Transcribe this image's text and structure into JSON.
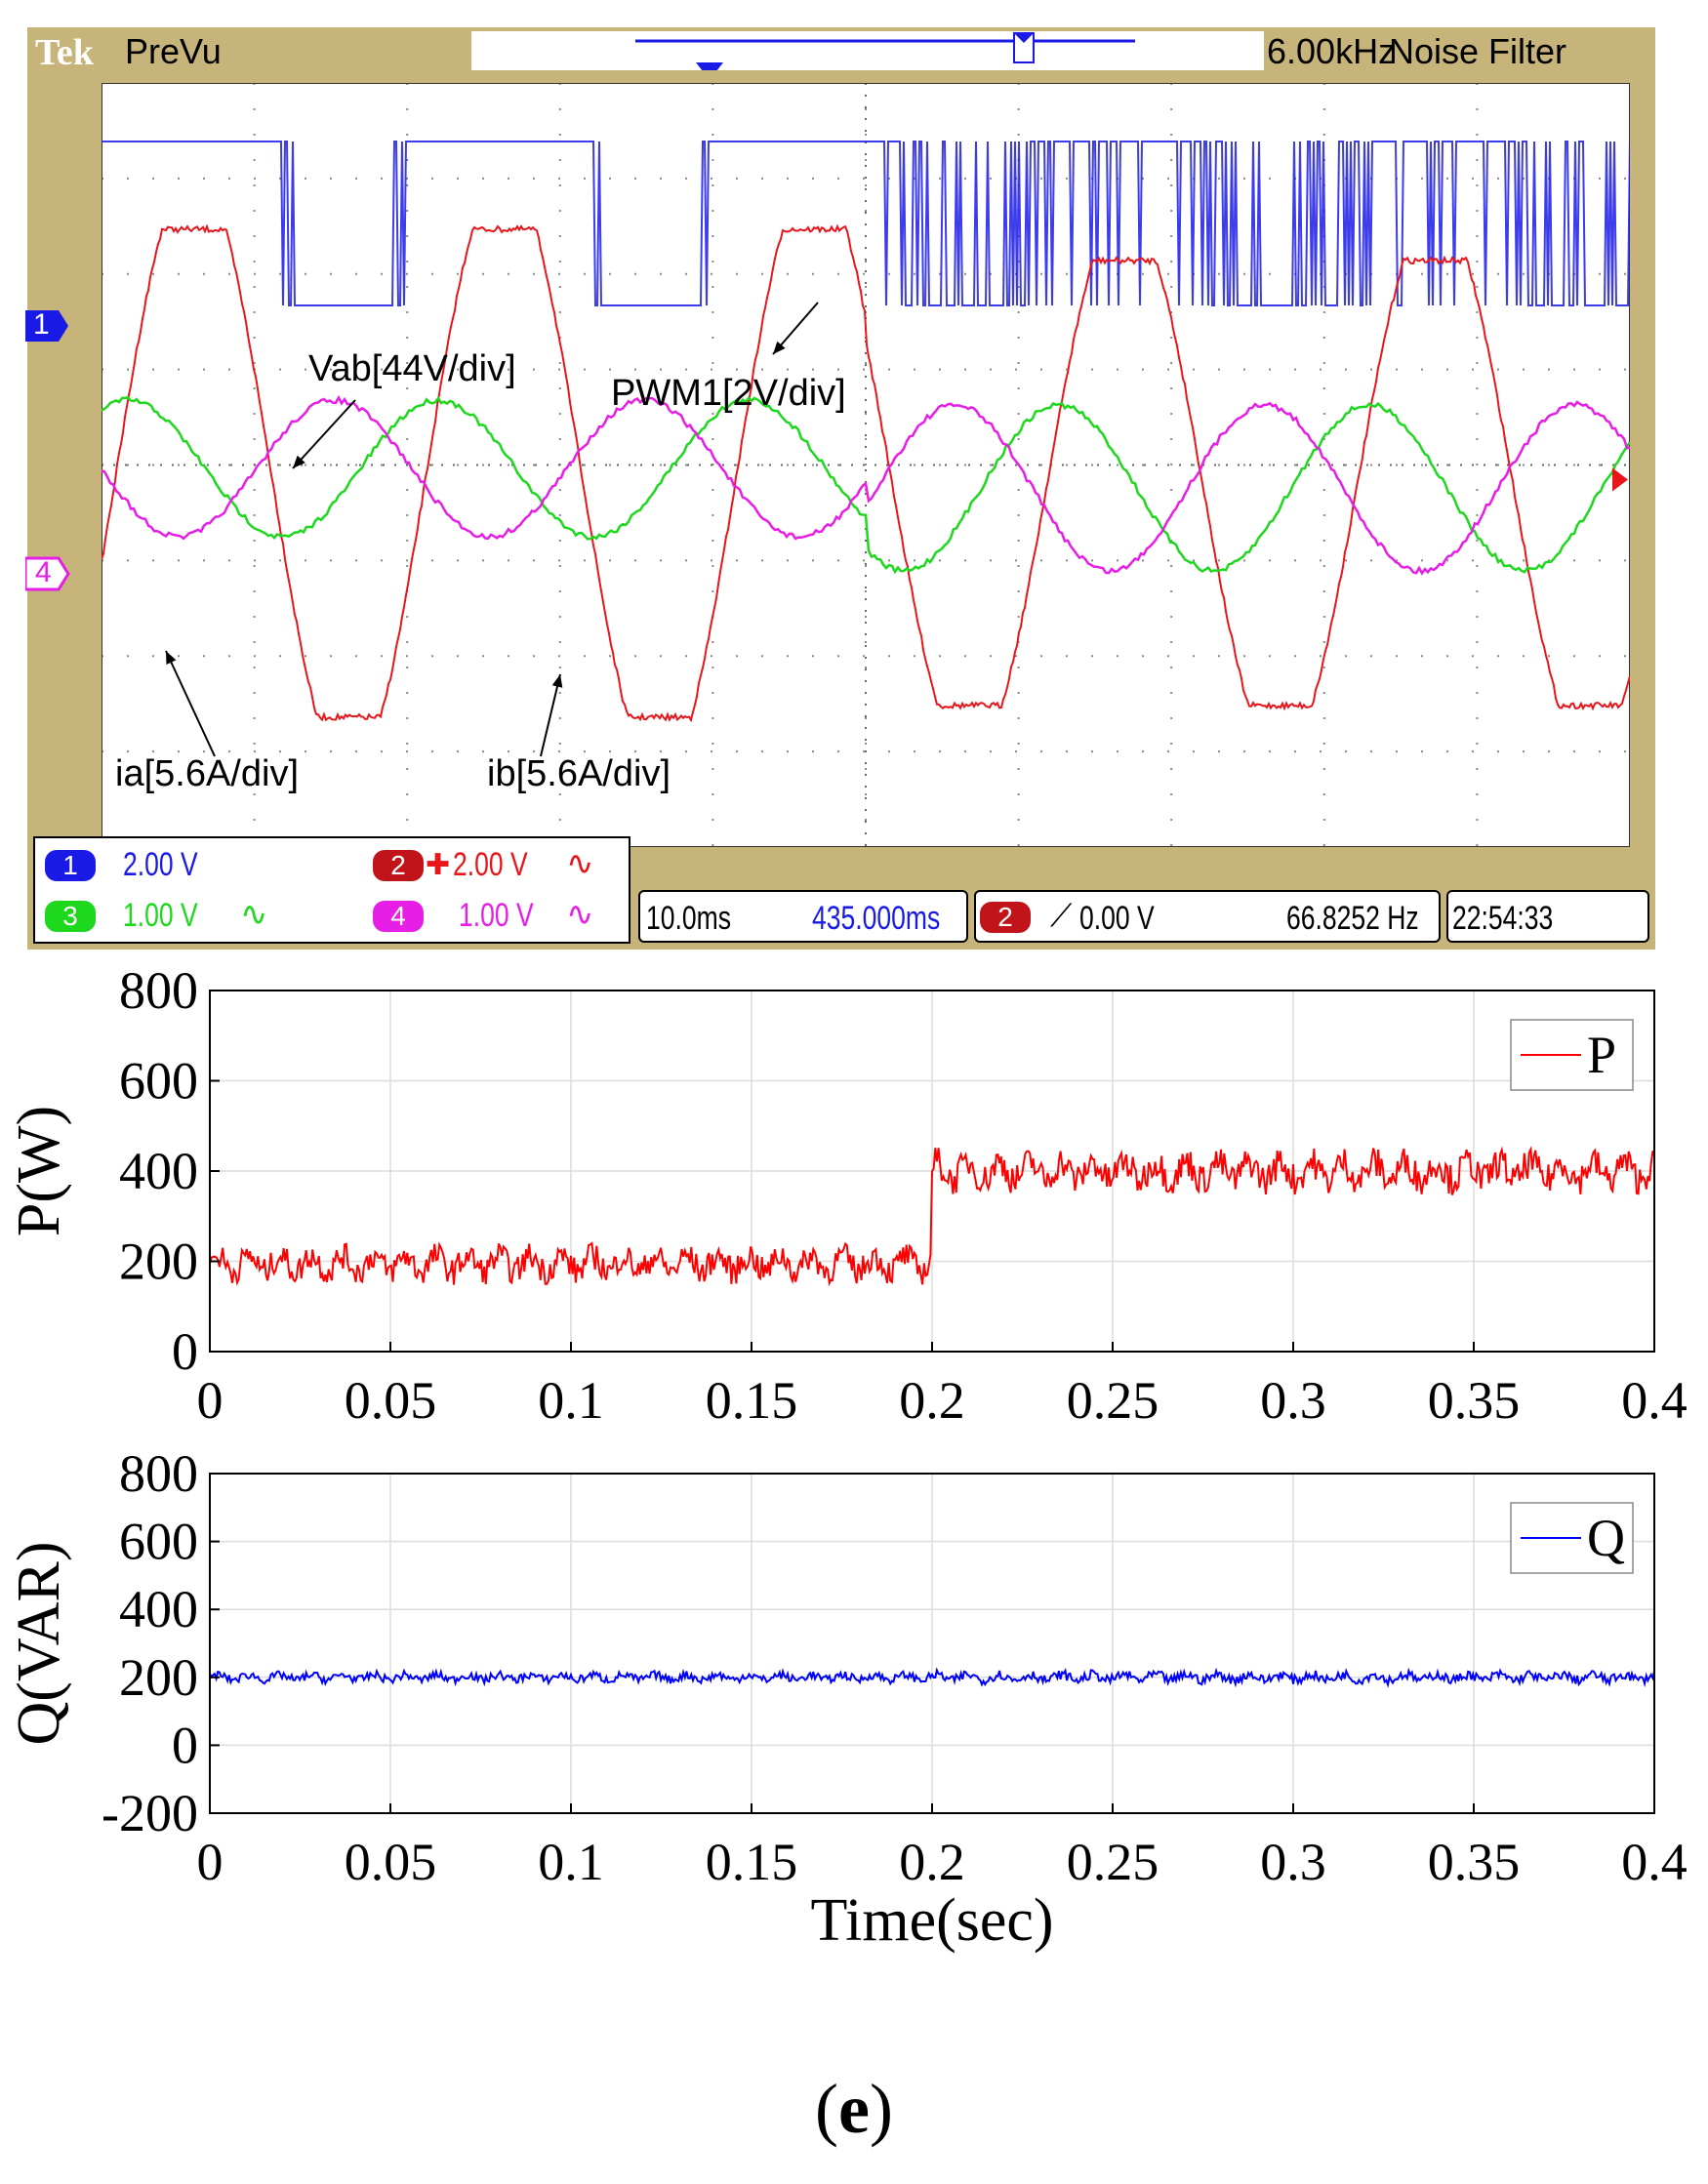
{
  "scope": {
    "logo": "Tek",
    "mode": "PreVu",
    "filter_freq": "6.00kHz",
    "filter_label": "Noise Filter",
    "channel_markers": [
      "1",
      "4"
    ],
    "annotations": {
      "vab": "Vab[44V/div]",
      "pwm1": "PWM1[2V/div]",
      "ia": "ia[5.6A/div]",
      "ib": "ib[5.6A/div]"
    },
    "readouts": {
      "ch1_num": "1",
      "ch1": "2.00 V",
      "ch2_num": "2",
      "ch2": "2.00 V",
      "ch3_num": "3",
      "ch3": "1.00 V",
      "ch4_num": "4",
      "ch4": "1.00 V",
      "timebase": "10.0ms",
      "position": "435.000ms",
      "trig_num": "2",
      "trig_level": "0.00 V",
      "frequency": "66.8252 Hz",
      "clock": "22:54:33"
    },
    "colors": {
      "ch1": "#1a1ae6",
      "ch2": "#e8161b",
      "ch3": "#1ed81e",
      "ch4": "#e61ee6"
    }
  },
  "chart_data": [
    {
      "type": "line",
      "ylabel": "P(W)",
      "xlabel": "",
      "xlim": [
        0,
        0.4
      ],
      "ylim": [
        0,
        800
      ],
      "x_ticks": [
        "0",
        "0.05",
        "0.1",
        "0.15",
        "0.2",
        "0.25",
        "0.3",
        "0.35",
        "0.4"
      ],
      "y_ticks": [
        "0",
        "200",
        "400",
        "600",
        "800"
      ],
      "grid": true,
      "legend": "top-right",
      "series": [
        {
          "name": "P",
          "color": "#ff0000",
          "x": [
            0,
            0.2,
            0.2,
            0.4
          ],
          "y": [
            195,
            195,
            400,
            400
          ],
          "noise": 30
        }
      ]
    },
    {
      "type": "line",
      "ylabel": "Q(VAR)",
      "xlabel": "Time(sec)",
      "xlim": [
        0,
        0.4
      ],
      "ylim": [
        -200,
        800
      ],
      "x_ticks": [
        "0",
        "0.05",
        "0.1",
        "0.15",
        "0.2",
        "0.25",
        "0.3",
        "0.35",
        "0.4"
      ],
      "y_ticks": [
        "-200",
        "0",
        "200",
        "400",
        "600",
        "800"
      ],
      "grid": true,
      "legend": "top-right",
      "series": [
        {
          "name": "Q",
          "color": "#0000ff",
          "x": [
            0,
            0.2,
            0.2,
            0.4
          ],
          "y": [
            200,
            200,
            200,
            200
          ],
          "noise": 12
        }
      ]
    }
  ],
  "caption": {
    "open": "(",
    "letter": "e",
    "close": ")"
  }
}
